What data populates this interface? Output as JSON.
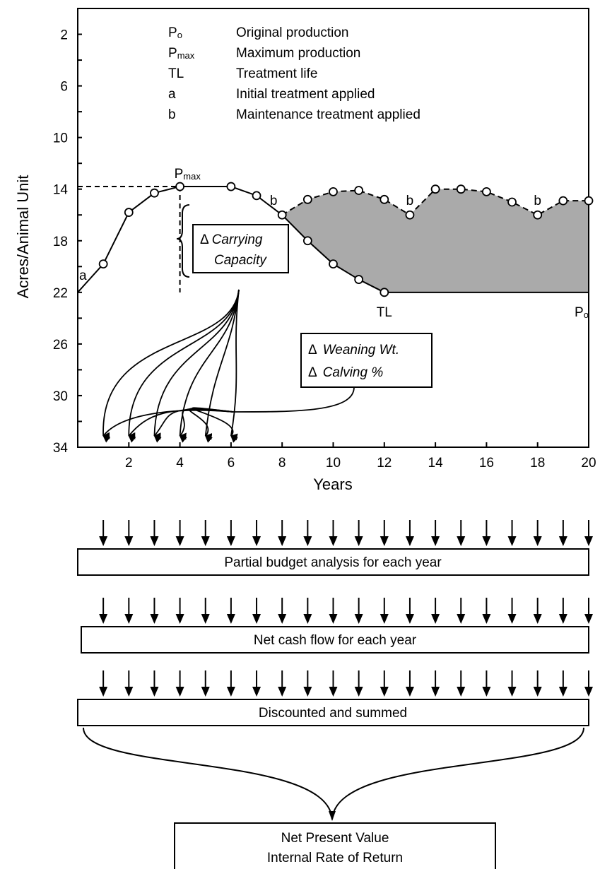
{
  "chart_data": {
    "type": "line",
    "xlabel": "Years",
    "ylabel": "Acres/Animal Unit",
    "xlim": [
      0,
      20
    ],
    "ylim": [
      34,
      0
    ],
    "y_inverted": true,
    "x_ticks": [
      2,
      4,
      6,
      8,
      10,
      12,
      14,
      16,
      18,
      20
    ],
    "y_ticks": [
      2,
      6,
      10,
      14,
      18,
      22,
      26,
      30,
      34
    ],
    "grid": false,
    "legend": {
      "placement": "top",
      "entries": [
        {
          "symbol": "Po",
          "symbol_base": "P",
          "symbol_sub": "o",
          "text": "Original production"
        },
        {
          "symbol": "Pmax",
          "symbol_base": "P",
          "symbol_sub": "max",
          "text": "Maximum production"
        },
        {
          "symbol": "TL",
          "symbol_base": "TL",
          "symbol_sub": "",
          "text": "Treatment life"
        },
        {
          "symbol": "a",
          "symbol_base": "a",
          "symbol_sub": "",
          "text": "Initial treatment applied"
        },
        {
          "symbol": "b",
          "symbol_base": "b",
          "symbol_sub": "",
          "text": "Maintenance treatment applied"
        }
      ]
    },
    "series": [
      {
        "style": "solid",
        "x": [
          0,
          1,
          2,
          3,
          4,
          6,
          7,
          8,
          9,
          10,
          11,
          12,
          20
        ],
        "y": [
          22,
          19.8,
          15.8,
          14.3,
          13.8,
          13.8,
          14.5,
          16,
          18,
          19.8,
          21,
          22,
          22
        ],
        "markers": [
          1,
          2,
          3,
          4,
          6,
          7,
          8,
          9,
          10,
          11,
          12
        ]
      },
      {
        "style": "dashed",
        "x": [
          8,
          9,
          10,
          11,
          12,
          13,
          14,
          15,
          16,
          17,
          18,
          19,
          20
        ],
        "y": [
          16,
          14.8,
          14.2,
          14.1,
          14.8,
          16,
          14,
          14,
          14.2,
          15,
          16,
          14.9,
          14.9
        ],
        "markers": [
          9,
          10,
          11,
          12,
          13,
          14,
          15,
          16,
          17,
          18,
          19,
          20
        ]
      }
    ],
    "shaded_region": {
      "between": "dashed series and solid series",
      "x_range": [
        8,
        20
      ],
      "color": "#aaaaaa"
    },
    "reference_lines": [
      {
        "type": "horizontal-dashed",
        "y": 13.8,
        "x_range": [
          0,
          4
        ]
      },
      {
        "type": "vertical-dashed",
        "x": 4,
        "y_range": [
          13.8,
          22
        ]
      }
    ],
    "annotations": [
      {
        "text": "a",
        "x": 0,
        "y": 22
      },
      {
        "text_base": "P",
        "text_sub": "max",
        "x": 4,
        "y": 13.8
      },
      {
        "text": "b",
        "x": 8,
        "y": 16
      },
      {
        "text": "b",
        "x": 13,
        "y": 16
      },
      {
        "text": "b",
        "x": 18,
        "y": 16
      },
      {
        "text": "TL",
        "x": 12,
        "y": 22
      },
      {
        "text_base": "P",
        "text_sub": "o",
        "x": 20,
        "y": 22
      }
    ],
    "boxes": {
      "carrying_capacity": {
        "delta": "Δ",
        "line1": "Carrying",
        "line2": "Capacity"
      },
      "weaning": {
        "line1_delta": "Δ",
        "line1": "Weaning Wt.",
        "line2_delta": "Δ",
        "line2": "Calving %"
      }
    },
    "arrow_targets_x": [
      1,
      2,
      3,
      4,
      5,
      6
    ]
  },
  "flow": {
    "rows": [
      {
        "label": "Partial budget analysis for each year",
        "arrow_count": 20
      },
      {
        "label": "Net cash flow for each year",
        "arrow_count": 20
      },
      {
        "label": "Discounted and summed",
        "arrow_count": 20
      }
    ],
    "result": {
      "line1": "Net Present Value",
      "line2": "Internal Rate of Return"
    }
  }
}
